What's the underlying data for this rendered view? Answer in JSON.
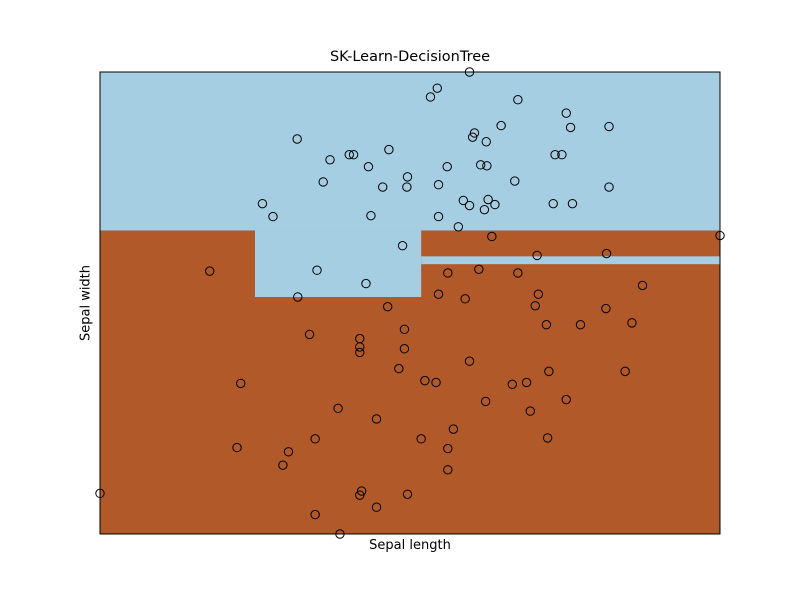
{
  "chart_data": {
    "type": "scatter",
    "title": "SK-Learn-DecisionTree",
    "xlabel": "Sepal length",
    "ylabel": "Sepal width",
    "xlim": [
      0,
      100
    ],
    "ylim": [
      0,
      100
    ],
    "ticks_visible": false,
    "grid": false,
    "legend": "none",
    "region_colors": {
      "light": "#a6cee3",
      "dark": "#b15928"
    },
    "regions": [
      {
        "class": "light",
        "x": [
          0,
          100
        ],
        "y": [
          65.7,
          100
        ]
      },
      {
        "class": "light",
        "x": [
          25,
          51.8
        ],
        "y": [
          51.3,
          65.7
        ]
      },
      {
        "class": "light",
        "x": [
          51.8,
          100
        ],
        "y": [
          58.4,
          60.1
        ]
      }
    ],
    "points": [
      [
        59.6,
        100
      ],
      [
        0,
        8.8
      ],
      [
        38.7,
        0
      ],
      [
        100,
        64.6
      ],
      [
        53.3,
        94.6
      ],
      [
        54.4,
        96.5
      ],
      [
        67.4,
        94
      ],
      [
        75.2,
        91.1
      ],
      [
        75.9,
        88
      ],
      [
        82.1,
        88.2
      ],
      [
        64.7,
        88.4
      ],
      [
        60.4,
        86.8
      ],
      [
        60.1,
        85.9
      ],
      [
        31.8,
        85.5
      ],
      [
        62.3,
        84.9
      ],
      [
        46.6,
        83.2
      ],
      [
        40.2,
        82.1
      ],
      [
        40.9,
        82.1
      ],
      [
        73.4,
        82.1
      ],
      [
        74.5,
        82.1
      ],
      [
        37.1,
        81
      ],
      [
        61.4,
        79.9
      ],
      [
        62.4,
        79.7
      ],
      [
        43.3,
        79.5
      ],
      [
        56,
        79.5
      ],
      [
        49.6,
        77.3
      ],
      [
        36,
        76.2
      ],
      [
        66.9,
        76.4
      ],
      [
        54.6,
        75.6
      ],
      [
        45.6,
        75.1
      ],
      [
        49.5,
        75.1
      ],
      [
        82.1,
        75.1
      ],
      [
        62.6,
        72.4
      ],
      [
        58.6,
        72.2
      ],
      [
        26.2,
        71.5
      ],
      [
        73.1,
        71.5
      ],
      [
        76.2,
        71.5
      ],
      [
        63.7,
        71.3
      ],
      [
        59.6,
        71.1
      ],
      [
        62,
        70.2
      ],
      [
        43.7,
        68.9
      ],
      [
        27.9,
        68.7
      ],
      [
        54.6,
        68.7
      ],
      [
        57.8,
        66.5
      ],
      [
        63.2,
        64.4
      ],
      [
        48.8,
        62.4
      ],
      [
        70.5,
        60.3
      ],
      [
        81.7,
        60.7
      ],
      [
        17.7,
        56.9
      ],
      [
        35,
        57.1
      ],
      [
        61.1,
        57.3
      ],
      [
        56.1,
        56.5
      ],
      [
        67.4,
        56.5
      ],
      [
        87.5,
        53.8
      ],
      [
        42.9,
        54.2
      ],
      [
        54.6,
        51.9
      ],
      [
        70.7,
        51.9
      ],
      [
        31.9,
        51.3
      ],
      [
        58.9,
        50.9
      ],
      [
        70.2,
        49.4
      ],
      [
        46.4,
        49.2
      ],
      [
        81.6,
        48.8
      ],
      [
        72,
        45.3
      ],
      [
        77.5,
        45.3
      ],
      [
        85.8,
        45.7
      ],
      [
        49.1,
        44.3
      ],
      [
        33.8,
        43.2
      ],
      [
        41.9,
        42.3
      ],
      [
        41.9,
        40.5
      ],
      [
        41.9,
        39.3
      ],
      [
        49.1,
        40.1
      ],
      [
        59.6,
        37.4
      ],
      [
        48.2,
        35.8
      ],
      [
        72.4,
        35.2
      ],
      [
        84.7,
        35.2
      ],
      [
        52.4,
        33.2
      ],
      [
        54.2,
        32.8
      ],
      [
        66.5,
        32.4
      ],
      [
        68.8,
        32.8
      ],
      [
        22.7,
        32.6
      ],
      [
        62.2,
        28.7
      ],
      [
        75.2,
        29.1
      ],
      [
        38.4,
        27.2
      ],
      [
        69.4,
        26.6
      ],
      [
        44.6,
        24.9
      ],
      [
        57,
        22.7
      ],
      [
        34.7,
        20.6
      ],
      [
        51.8,
        20.6
      ],
      [
        72.2,
        20.8
      ],
      [
        22.1,
        18.7
      ],
      [
        30.4,
        17.8
      ],
      [
        56.1,
        18.5
      ],
      [
        29.5,
        14.9
      ],
      [
        56.1,
        13.9
      ],
      [
        42.2,
        9.3
      ],
      [
        41.9,
        8.4
      ],
      [
        49.6,
        8.6
      ],
      [
        44.6,
        5.8
      ],
      [
        34.7,
        4.2
      ]
    ]
  }
}
